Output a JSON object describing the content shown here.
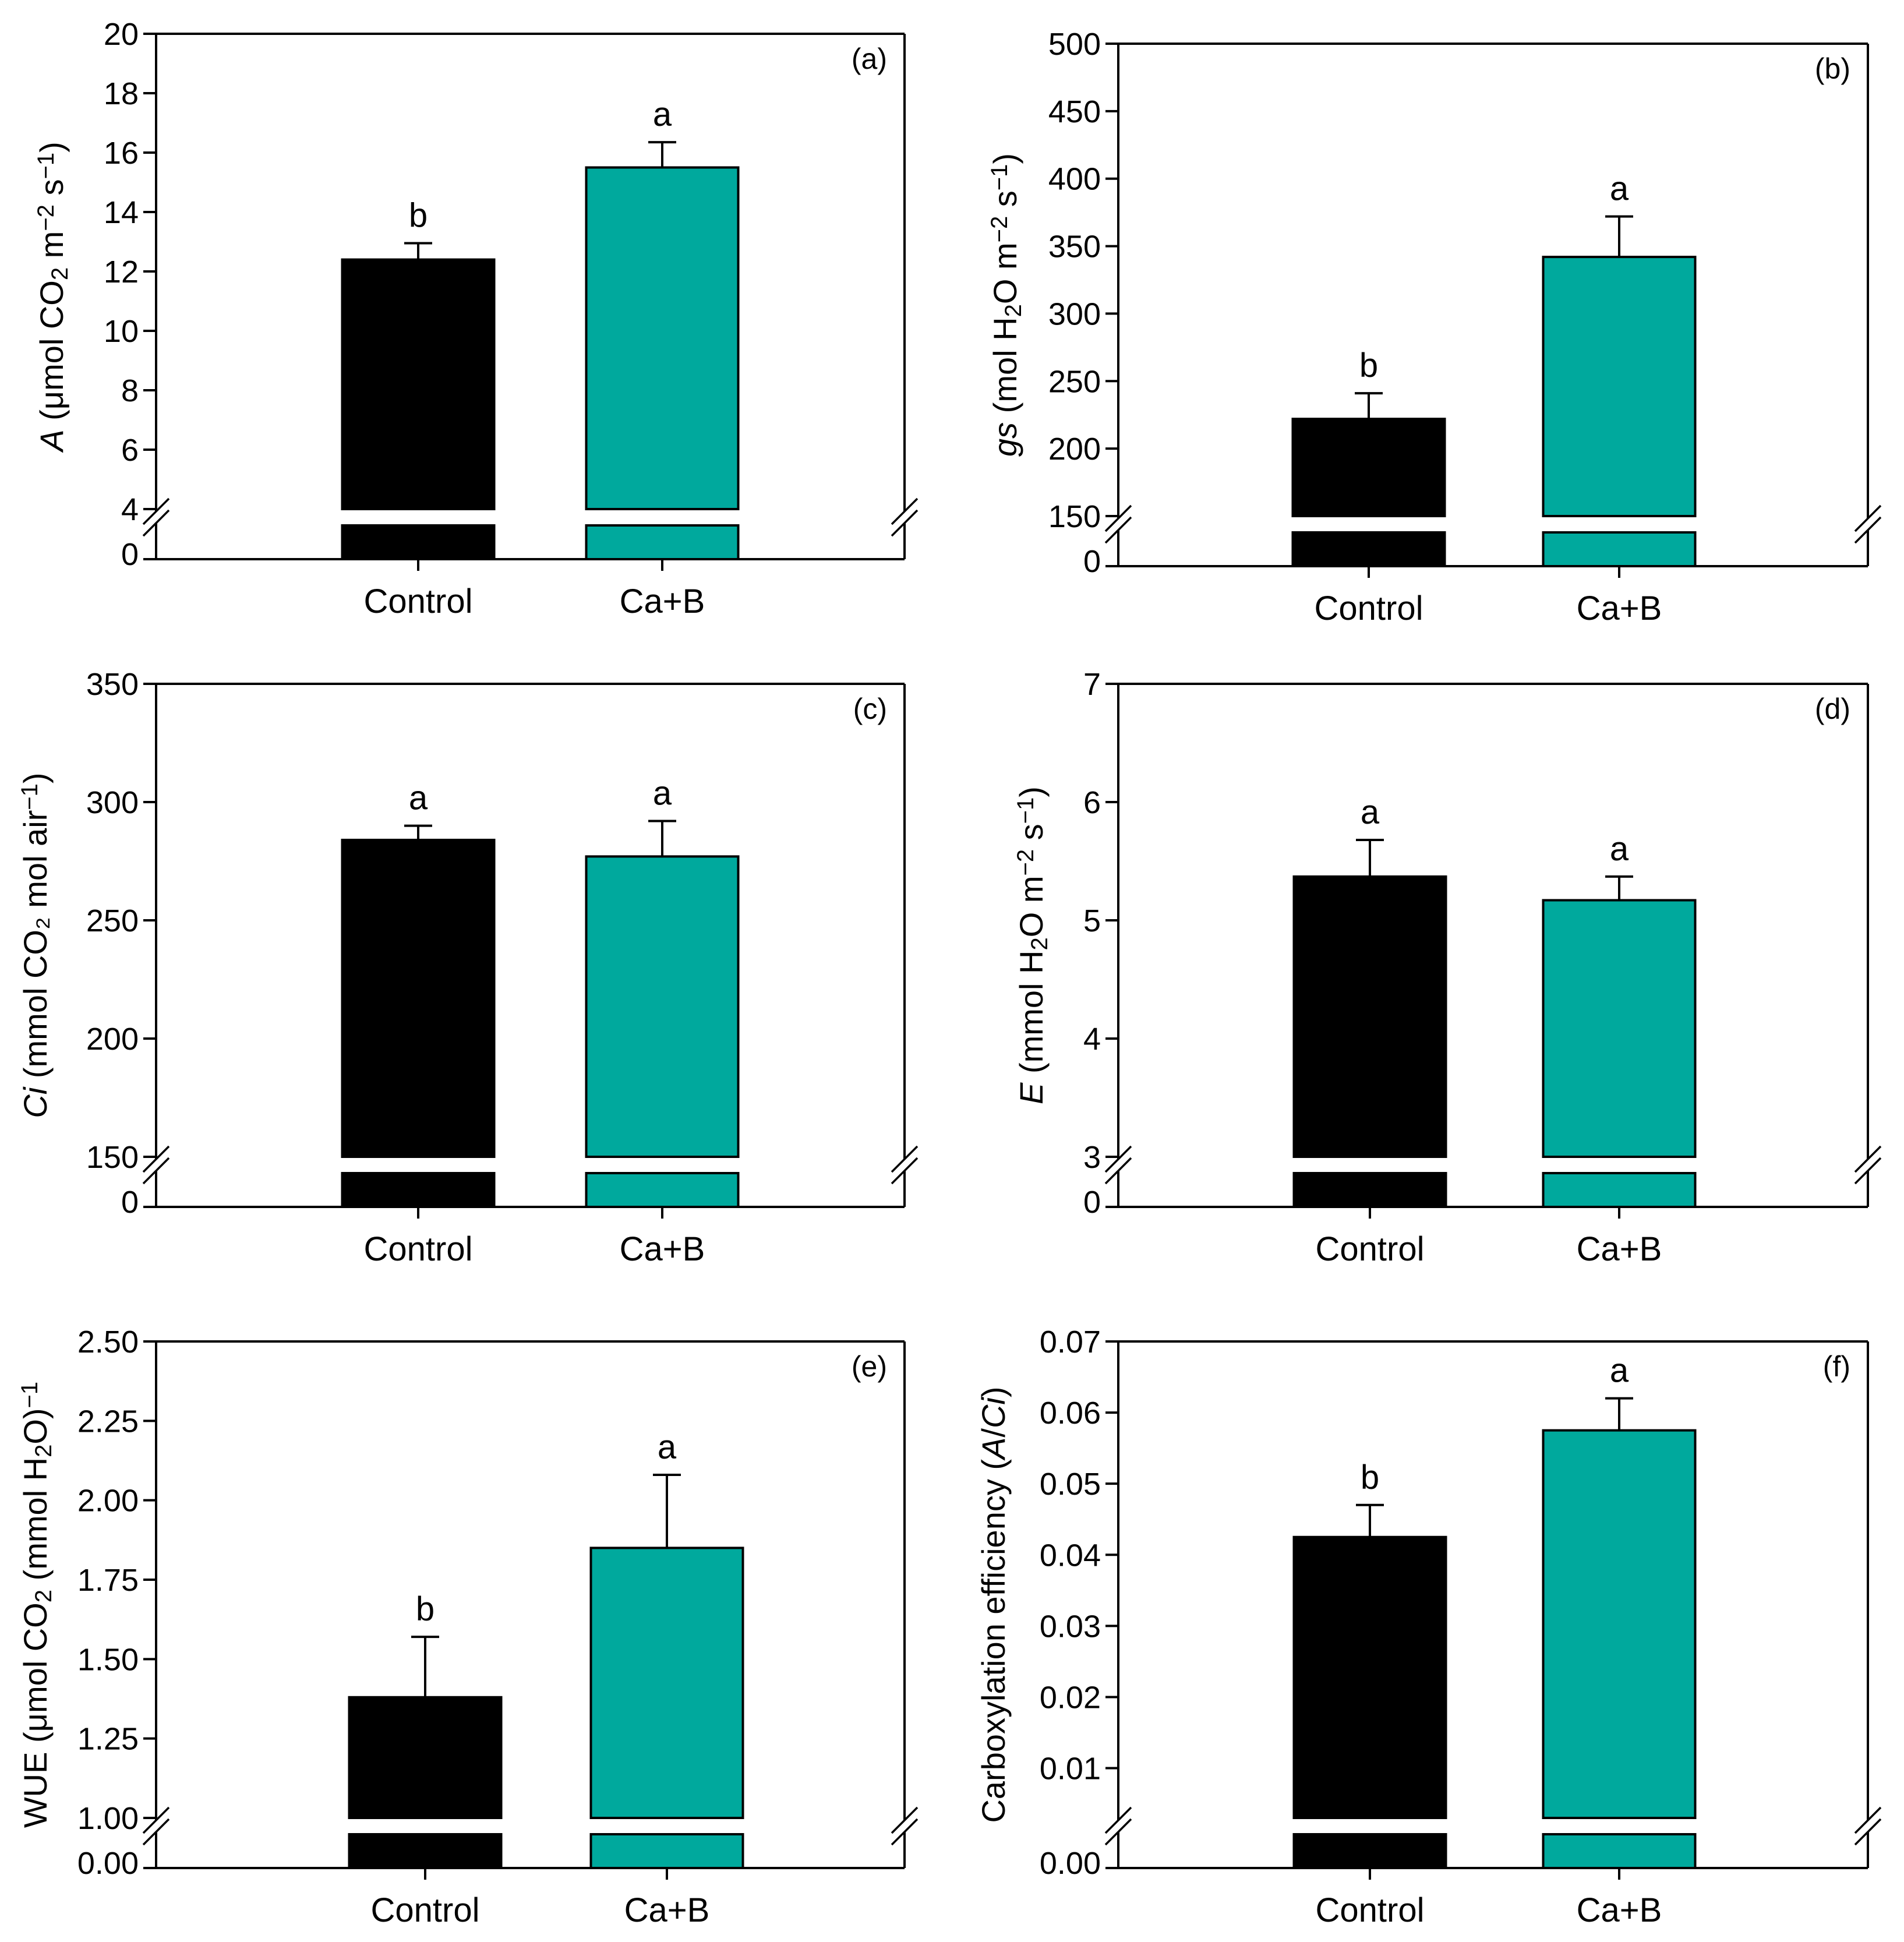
{
  "colors": {
    "control": "#000000",
    "treatment": "#00a99d",
    "axis": "#000000"
  },
  "chart_data": [
    {
      "type": "bar",
      "panel_label": "(a)",
      "ylabel": "A (μmol CO2 m−2 s−1)",
      "ylabel_parts": [
        {
          "text": "A",
          "style": "italic"
        },
        {
          "text": " (μmol CO"
        },
        {
          "text": "2",
          "sub": true
        },
        {
          "text": " m"
        },
        {
          "text": "−2",
          "sup": true
        },
        {
          "text": " s"
        },
        {
          "text": "−1",
          "sup": true
        },
        {
          "text": ")"
        }
      ],
      "categories": [
        "Control",
        "Ca+B"
      ],
      "values": [
        12.4,
        15.5
      ],
      "errors": [
        0.55,
        0.85
      ],
      "sig": [
        "b",
        "a"
      ],
      "break_low_tick": "0",
      "ylim": [
        4,
        20
      ],
      "yticks": [
        4,
        6,
        8,
        10,
        12,
        14,
        16,
        18,
        20
      ],
      "ytick_labels": [
        "4",
        "6",
        "8",
        "10",
        "12",
        "14",
        "16",
        "18",
        "20"
      ]
    },
    {
      "type": "bar",
      "panel_label": "(b)",
      "ylabel": "gs (mol H2O m−2 s−1)",
      "ylabel_parts": [
        {
          "text": "gs",
          "style": "italic"
        },
        {
          "text": " (mol H"
        },
        {
          "text": "2",
          "sub": true
        },
        {
          "text": "O m"
        },
        {
          "text": "−2",
          "sup": true
        },
        {
          "text": " s"
        },
        {
          "text": "−1",
          "sup": true
        },
        {
          "text": ")"
        }
      ],
      "categories": [
        "Control",
        "Ca+B"
      ],
      "values": [
        222,
        342
      ],
      "errors": [
        19,
        30
      ],
      "sig": [
        "b",
        "a"
      ],
      "break_low_tick": "0",
      "ylim": [
        150,
        500
      ],
      "yticks": [
        150,
        200,
        250,
        300,
        350,
        400,
        450,
        500
      ],
      "ytick_labels": [
        "150",
        "200",
        "250",
        "300",
        "350",
        "400",
        "450",
        "500"
      ]
    },
    {
      "type": "bar",
      "panel_label": "(c)",
      "ylabel": "Ci (mmol CO₂ mol air−1)",
      "ylabel_parts": [
        {
          "text": "Ci",
          "style": "italic"
        },
        {
          "text": " (mmol CO₂ mol air"
        },
        {
          "text": "−1",
          "sup": true
        },
        {
          "text": ")"
        }
      ],
      "categories": [
        "Control",
        "Ca+B"
      ],
      "values": [
        284,
        277
      ],
      "errors": [
        6,
        15
      ],
      "sig": [
        "a",
        "a"
      ],
      "break_low_tick": "0",
      "ylim": [
        150,
        350
      ],
      "yticks": [
        150,
        200,
        250,
        300,
        350
      ],
      "ytick_labels": [
        "150",
        "200",
        "250",
        "300",
        "350"
      ]
    },
    {
      "type": "bar",
      "panel_label": "(d)",
      "ylabel": "E (mmol H2O m−2 s−1)",
      "ylabel_parts": [
        {
          "text": "E",
          "style": "italic"
        },
        {
          "text": " (mmol H"
        },
        {
          "text": "2",
          "sub": true
        },
        {
          "text": "O m"
        },
        {
          "text": "−2",
          "sup": true
        },
        {
          "text": " s"
        },
        {
          "text": "−1",
          "sup": true
        },
        {
          "text": ")"
        }
      ],
      "categories": [
        "Control",
        "Ca+B"
      ],
      "values": [
        5.37,
        5.17
      ],
      "errors": [
        0.31,
        0.2
      ],
      "sig": [
        "a",
        "a"
      ],
      "break_low_tick": "0",
      "ylim": [
        3,
        7
      ],
      "yticks": [
        3,
        4,
        5,
        6,
        7
      ],
      "ytick_labels": [
        "3",
        "4",
        "5",
        "6",
        "7"
      ]
    },
    {
      "type": "bar",
      "panel_label": "(e)",
      "ylabel": "WUE (μmol CO2 (mmol H2O)−1)",
      "ylabel_parts": [
        {
          "text": "WUE (μmol CO"
        },
        {
          "text": "2",
          "sub": true
        },
        {
          "text": " (mmol H"
        },
        {
          "text": "2",
          "sub": true
        },
        {
          "text": "O)"
        },
        {
          "text": "−1",
          "sup": true
        }
      ],
      "categories": [
        "Control",
        "Ca+B"
      ],
      "values": [
        1.38,
        1.85
      ],
      "errors": [
        0.19,
        0.23
      ],
      "sig": [
        "b",
        "a"
      ],
      "break_low_tick": "0.00",
      "ylim": [
        1.0,
        2.5
      ],
      "yticks": [
        1.0,
        1.25,
        1.5,
        1.75,
        2.0,
        2.25,
        2.5
      ],
      "ytick_labels": [
        "1.00",
        "1.25",
        "1.50",
        "1.75",
        "2.00",
        "2.25",
        "2.50"
      ]
    },
    {
      "type": "bar",
      "panel_label": "(f)",
      "ylabel": "Carboxylation efficiency (A/Ci)",
      "ylabel_parts": [
        {
          "text": "Carboxylation efficiency ("
        },
        {
          "text": "A",
          "style": "italic"
        },
        {
          "text": "/"
        },
        {
          "text": "Ci",
          "style": "italic"
        },
        {
          "text": ")"
        }
      ],
      "categories": [
        "Control",
        "Ca+B"
      ],
      "values": [
        0.0425,
        0.0575
      ],
      "errors": [
        0.0045,
        0.0045
      ],
      "sig": [
        "b",
        "a"
      ],
      "break_low_tick": "0.00",
      "ylim": [
        0.003,
        0.07
      ],
      "yticks": [
        0.01,
        0.02,
        0.03,
        0.04,
        0.05,
        0.06,
        0.07
      ],
      "ytick_labels": [
        "0.01",
        "0.02",
        "0.03",
        "0.04",
        "0.05",
        "0.06",
        "0.07"
      ]
    }
  ]
}
